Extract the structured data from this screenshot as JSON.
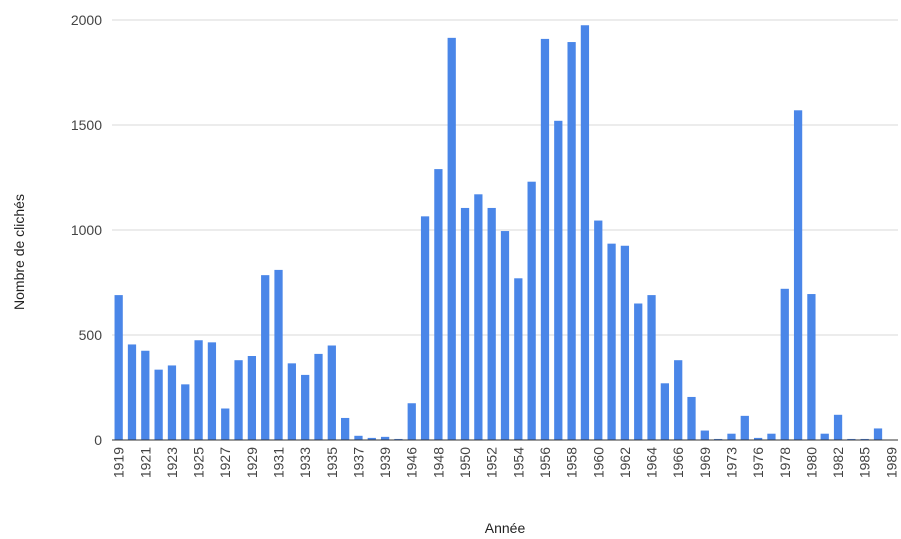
{
  "chart_data": {
    "type": "bar",
    "title": "",
    "xlabel": "Année",
    "ylabel": "Nombre de clichés",
    "ylim": [
      0,
      2000
    ],
    "yticks": [
      0,
      500,
      1000,
      1500,
      2000
    ],
    "grid": true,
    "legend": "none",
    "bar_color": "#4a86e8",
    "categories": [
      "1919",
      "1920",
      "1921",
      "1922",
      "1923",
      "1924",
      "1925",
      "1926",
      "1927",
      "1928",
      "1929",
      "1930",
      "1931",
      "1932",
      "1933",
      "1934",
      "1935",
      "1936",
      "1937",
      "1938",
      "1939",
      "1940",
      "1946",
      "1947",
      "1948",
      "1949",
      "1950",
      "1951",
      "1952",
      "1953",
      "1954",
      "1955",
      "1956",
      "1957",
      "1958",
      "1959",
      "1960",
      "1961",
      "1962",
      "1963",
      "1964",
      "1965",
      "1966",
      "1967",
      "1969",
      "1970",
      "1973",
      "1974",
      "1976",
      "1977",
      "1978",
      "1979",
      "1980",
      "1981",
      "1982",
      "1983",
      "1985",
      "1986",
      "1989"
    ],
    "tick_labels": [
      "1919",
      "1921",
      "1923",
      "1925",
      "1927",
      "1929",
      "1931",
      "1933",
      "1935",
      "1937",
      "1939",
      "1946",
      "1948",
      "1950",
      "1952",
      "1954",
      "1956",
      "1958",
      "1960",
      "1962",
      "1964",
      "1966",
      "1969",
      "1973",
      "1976",
      "1978",
      "1980",
      "1982",
      "1985",
      "1989"
    ],
    "values": [
      690,
      455,
      425,
      335,
      355,
      265,
      475,
      465,
      150,
      380,
      400,
      785,
      810,
      365,
      310,
      410,
      450,
      105,
      20,
      10,
      15,
      5,
      175,
      1065,
      1290,
      1915,
      1105,
      1170,
      1105,
      995,
      770,
      1230,
      1910,
      1520,
      1895,
      1975,
      1045,
      935,
      925,
      650,
      690,
      270,
      380,
      205,
      45,
      5,
      30,
      115,
      10,
      30,
      720,
      1570,
      695,
      30,
      120,
      5,
      5,
      55,
      0
    ]
  }
}
